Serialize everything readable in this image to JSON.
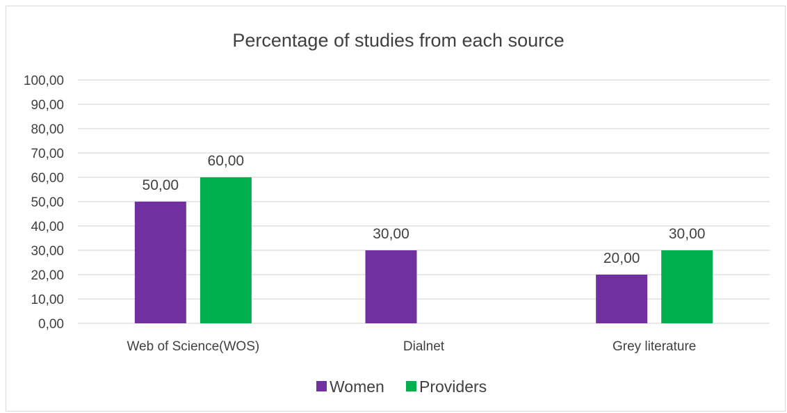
{
  "chart_data": {
    "type": "bar",
    "title": "Percentage of studies from each source",
    "categories": [
      "Web of Science(WOS)",
      "Dialnet",
      "Grey literature"
    ],
    "series": [
      {
        "name": "Women",
        "values": [
          50,
          30,
          20
        ],
        "labels": [
          "50,00",
          "30,00",
          "20,00"
        ],
        "color": "#7030a0"
      },
      {
        "name": "Providers",
        "values": [
          60,
          0,
          30
        ],
        "labels": [
          "60,00",
          "",
          "30,00"
        ],
        "color": "#00b050"
      }
    ],
    "ylim": [
      0,
      100
    ],
    "yticks": [
      0,
      10,
      20,
      30,
      40,
      50,
      60,
      70,
      80,
      90,
      100
    ],
    "ytick_labels": [
      "0,00",
      "10,00",
      "20,00",
      "30,00",
      "40,00",
      "50,00",
      "60,00",
      "70,00",
      "80,00",
      "90,00",
      "100,00"
    ],
    "grid": true,
    "legend": "bottom",
    "grid_color": "#d9d9d9",
    "text_color": "#404040"
  }
}
